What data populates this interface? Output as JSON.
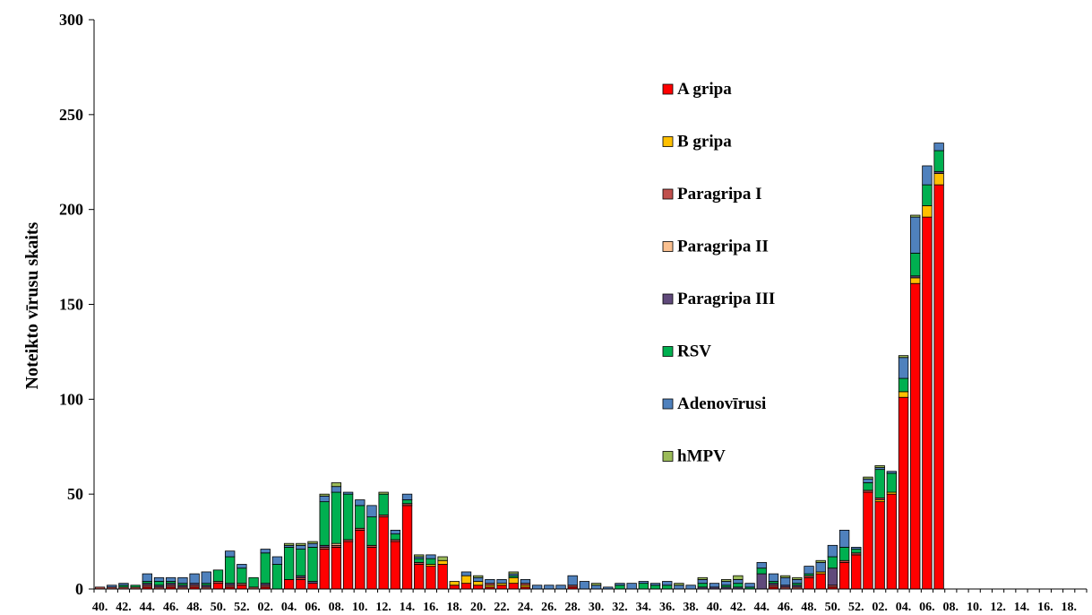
{
  "chart_data": {
    "type": "bar",
    "stacked": true,
    "title": "",
    "xlabel": "",
    "ylabel": "Noteikto vīrusu skaits",
    "ylim": [
      0,
      300
    ],
    "yticks": [
      "0",
      "50",
      "100",
      "150",
      "200",
      "250",
      "300"
    ],
    "grid": false,
    "legend_position": "right",
    "categories": [
      "40",
      "41",
      "42",
      "43",
      "44",
      "45",
      "46",
      "47",
      "48",
      "49",
      "50",
      "51",
      "52",
      "01",
      "02",
      "03",
      "04",
      "05",
      "06",
      "07",
      "08",
      "09",
      "10",
      "11",
      "12",
      "13",
      "14",
      "15",
      "16",
      "17",
      "18",
      "19",
      "20",
      "21",
      "22",
      "23",
      "24",
      "25",
      "26",
      "27",
      "28",
      "29",
      "30",
      "31",
      "32",
      "33",
      "34",
      "35",
      "36",
      "37",
      "38",
      "39",
      "40",
      "41",
      "42",
      "43",
      "44",
      "45",
      "46",
      "47",
      "48",
      "49",
      "50",
      "51",
      "52",
      "01",
      "02",
      "03",
      "04",
      "05",
      "06",
      "07",
      "08",
      "09",
      "10",
      "11",
      "12",
      "13",
      "14",
      "15",
      "16",
      "17",
      "18",
      "19"
    ],
    "x_tick_labels": [
      "40.",
      "42.",
      "44.",
      "46.",
      "48.",
      "50.",
      "52.",
      "02.",
      "04.",
      "06.",
      "08.",
      "10.",
      "12.",
      "14.",
      "16.",
      "18.",
      "20.",
      "22.",
      "24.",
      "26.",
      "28.",
      "30.",
      "32.",
      "34.",
      "36.",
      "38.",
      "40.",
      "42.",
      "44.",
      "46.",
      "48.",
      "50.",
      "52.",
      "02.",
      "04.",
      "06.",
      "08.",
      "10.",
      "12.",
      "14.",
      "16.",
      "18."
    ],
    "series": [
      {
        "name": "A gripa",
        "color": "#ff0000",
        "values": [
          0,
          0,
          0,
          0,
          1,
          0,
          1,
          0,
          1,
          0,
          3,
          1,
          2,
          0,
          1,
          0,
          5,
          5,
          3,
          21,
          22,
          25,
          31,
          22,
          38,
          25,
          44,
          13,
          12,
          13,
          2,
          3,
          2,
          1,
          2,
          3,
          1,
          0,
          0,
          0,
          1,
          0,
          0,
          0,
          0,
          0,
          0,
          0,
          0,
          0,
          0,
          0,
          0,
          0,
          0,
          0,
          0,
          1,
          0,
          0,
          6,
          8,
          1,
          14,
          18,
          51,
          46,
          50,
          101,
          161,
          196,
          213,
          0,
          0,
          0,
          0,
          0,
          0,
          0,
          0,
          0,
          0,
          0,
          0
        ]
      },
      {
        "name": "B gripa",
        "color": "#ffc000",
        "values": [
          0,
          0,
          0,
          0,
          0,
          0,
          0,
          0,
          0,
          0,
          0,
          0,
          0,
          0,
          0,
          0,
          0,
          0,
          0,
          0,
          0,
          0,
          0,
          0,
          0,
          0,
          0,
          0,
          1,
          2,
          2,
          4,
          2,
          1,
          1,
          3,
          1,
          0,
          0,
          0,
          0,
          0,
          0,
          0,
          0,
          0,
          0,
          0,
          0,
          0,
          0,
          0,
          0,
          0,
          0,
          0,
          0,
          0,
          0,
          0,
          0,
          1,
          0,
          0,
          0,
          0,
          1,
          1,
          3,
          3,
          6,
          6,
          0,
          0,
          0,
          0,
          0,
          0,
          0,
          0,
          0,
          0,
          0,
          0
        ]
      },
      {
        "name": "Paragripa I",
        "color": "#c0504d",
        "values": [
          1,
          1,
          1,
          1,
          1,
          1,
          1,
          1,
          1,
          1,
          1,
          1,
          1,
          1,
          1,
          0,
          0,
          1,
          0,
          1,
          1,
          1,
          1,
          1,
          1,
          1,
          1,
          1,
          0,
          0,
          0,
          0,
          0,
          1,
          0,
          0,
          1,
          0,
          0,
          0,
          1,
          0,
          0,
          0,
          0,
          0,
          0,
          0,
          0,
          0,
          0,
          0,
          0,
          0,
          0,
          0,
          0,
          1,
          1,
          1,
          1,
          0,
          1,
          1,
          1,
          1,
          1,
          0,
          0,
          0,
          0,
          0,
          0,
          0,
          0,
          0,
          0,
          0,
          0,
          0,
          0,
          0,
          0,
          0
        ]
      },
      {
        "name": "Paragripa II",
        "color": "#fac090",
        "values": [
          0,
          0,
          0,
          0,
          0,
          0,
          0,
          0,
          0,
          0,
          0,
          0,
          0,
          0,
          0,
          0,
          0,
          0,
          0,
          0,
          1,
          0,
          0,
          0,
          0,
          0,
          0,
          0,
          0,
          0,
          0,
          0,
          0,
          0,
          0,
          0,
          0,
          0,
          0,
          0,
          0,
          0,
          0,
          0,
          0,
          0,
          0,
          0,
          0,
          0,
          0,
          0,
          0,
          0,
          0,
          0,
          0,
          0,
          0,
          0,
          0,
          0,
          0,
          0,
          0,
          0,
          0,
          0,
          0,
          0,
          0,
          0,
          0,
          0,
          0,
          0,
          0,
          0,
          0,
          0,
          0,
          0,
          0,
          0
        ]
      },
      {
        "name": "Paragripa III",
        "color": "#604a7b",
        "values": [
          0,
          0,
          0,
          0,
          1,
          1,
          1,
          1,
          1,
          1,
          0,
          1,
          0,
          0,
          1,
          0,
          0,
          1,
          1,
          1,
          0,
          0,
          0,
          0,
          0,
          0,
          0,
          0,
          0,
          0,
          0,
          0,
          0,
          0,
          0,
          0,
          0,
          0,
          0,
          0,
          0,
          0,
          0,
          0,
          0,
          0,
          0,
          0,
          0,
          0,
          0,
          1,
          1,
          1,
          1,
          0,
          8,
          1,
          1,
          1,
          0,
          0,
          9,
          0,
          0,
          0,
          0,
          0,
          0,
          1,
          0,
          1,
          0,
          0,
          0,
          0,
          0,
          0,
          0,
          0,
          0,
          0,
          0,
          0
        ]
      },
      {
        "name": "RSV",
        "color": "#00b050",
        "values": [
          0,
          0,
          1,
          1,
          1,
          2,
          1,
          1,
          0,
          1,
          6,
          14,
          8,
          5,
          16,
          13,
          17,
          14,
          18,
          23,
          27,
          24,
          12,
          15,
          11,
          3,
          2,
          2,
          3,
          0,
          0,
          0,
          0,
          0,
          0,
          1,
          0,
          0,
          0,
          0,
          0,
          0,
          0,
          0,
          2,
          0,
          3,
          2,
          2,
          0,
          0,
          2,
          0,
          1,
          2,
          1,
          3,
          1,
          0,
          1,
          1,
          0,
          6,
          7,
          2,
          4,
          15,
          10,
          7,
          12,
          11,
          11,
          0,
          0,
          0,
          0,
          0,
          0,
          0,
          0,
          0,
          0,
          0,
          0
        ]
      },
      {
        "name": "Adenovīrusi",
        "color": "#4f81bd",
        "values": [
          0,
          1,
          1,
          0,
          4,
          2,
          2,
          3,
          5,
          6,
          0,
          3,
          2,
          0,
          2,
          4,
          1,
          2,
          2,
          3,
          3,
          1,
          3,
          6,
          0,
          2,
          3,
          1,
          2,
          0,
          0,
          2,
          2,
          2,
          2,
          1,
          2,
          2,
          2,
          2,
          5,
          4,
          2,
          1,
          1,
          3,
          1,
          1,
          2,
          2,
          2,
          2,
          2,
          2,
          2,
          2,
          3,
          4,
          4,
          2,
          4,
          5,
          6,
          9,
          1,
          2,
          1,
          1,
          11,
          19,
          10,
          4,
          0,
          0,
          0,
          0,
          0,
          0,
          0,
          0,
          0,
          0,
          0,
          0
        ]
      },
      {
        "name": "hMPV",
        "color": "#9bbb59",
        "values": [
          0,
          0,
          0,
          0,
          0,
          0,
          0,
          0,
          0,
          0,
          0,
          0,
          0,
          0,
          0,
          0,
          1,
          1,
          1,
          1,
          2,
          0,
          0,
          0,
          1,
          0,
          0,
          1,
          0,
          2,
          0,
          0,
          1,
          0,
          0,
          1,
          0,
          0,
          0,
          0,
          0,
          0,
          1,
          0,
          0,
          0,
          0,
          0,
          0,
          1,
          0,
          1,
          0,
          1,
          2,
          0,
          0,
          0,
          1,
          1,
          0,
          1,
          0,
          0,
          0,
          1,
          1,
          0,
          1,
          1,
          0,
          0,
          0,
          0,
          0,
          0,
          0,
          0,
          0,
          0,
          0,
          0,
          0,
          0
        ]
      }
    ]
  }
}
